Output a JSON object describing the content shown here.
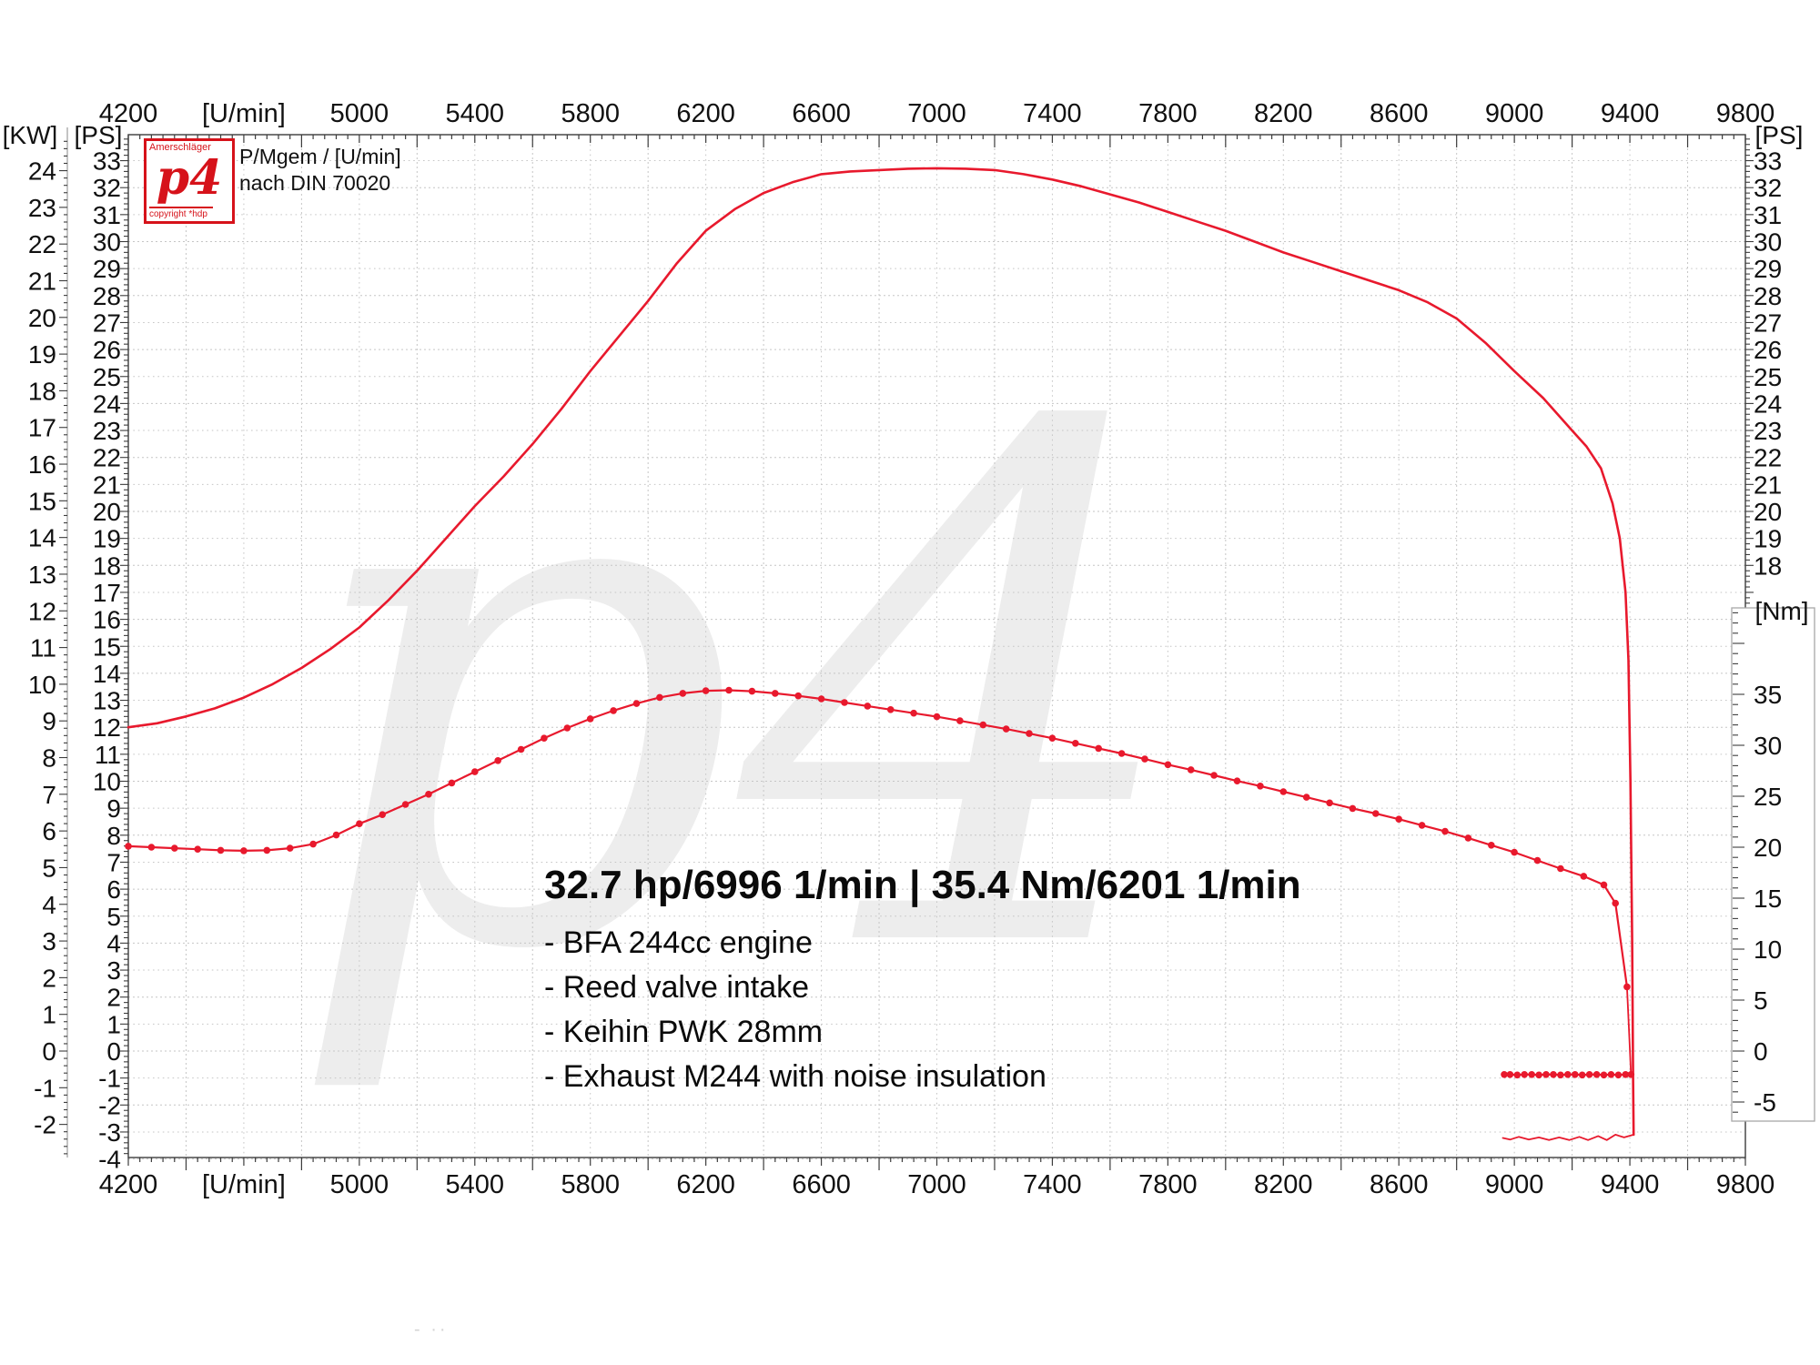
{
  "logo": {
    "brand_top": "Amerschläger",
    "brand_main": "p4",
    "brand_bottom": "copyright *hdp",
    "accent_color": "#d6121a"
  },
  "header_note": {
    "line1": "P/Mgem / [U/min]",
    "line2": "nach DIN 70020"
  },
  "annotation": {
    "title": "32.7 hp/6996 1/min | 35.4 Nm/6201 1/min",
    "bullets": [
      "- BFA 244cc engine",
      "- Reed valve intake",
      "- Keihin PWK 28mm",
      "- Exhaust M244 with noise insulation"
    ]
  },
  "watermark": "p4",
  "artifact": {
    "text": "- ··"
  },
  "chart_data": {
    "type": "line",
    "title": "32.7 hp/6996 1/min | 35.4 Nm/6201 1/min",
    "peak_power": {
      "value": 32.7,
      "unit": "hp",
      "rpm": 6996
    },
    "peak_torque": {
      "value": 35.4,
      "unit": "Nm",
      "rpm": 6201
    },
    "grid": "on",
    "colors": {
      "curve": "#e8192d",
      "grid": "#c6c6c6",
      "axis": "#3c3c3c",
      "watermark": "#ededed"
    },
    "x_axis": {
      "label": "[U/min]",
      "min": 4200,
      "max": 9800,
      "major_step": 400,
      "minor_grid_step": 200,
      "tick_labels": [
        "4200",
        "[U/min]",
        "5000",
        "5400",
        "5800",
        "6200",
        "6600",
        "7000",
        "7400",
        "7800",
        "8200",
        "8600",
        "9000",
        "9400",
        "9800"
      ]
    },
    "kw_axis": {
      "label": "[KW]",
      "ticks": [
        24,
        23,
        22,
        21,
        20,
        19,
        18,
        17,
        16,
        15,
        14,
        13,
        12,
        11,
        10,
        9,
        8,
        7,
        6,
        5,
        4,
        3,
        2,
        1,
        0,
        -1,
        -2
      ]
    },
    "ps_axis_left": {
      "label": "[PS]",
      "ticks": [
        33,
        32,
        31,
        30,
        29,
        28,
        27,
        26,
        25,
        24,
        23,
        22,
        21,
        20,
        19,
        18,
        17,
        16,
        15,
        14,
        13,
        12,
        11,
        10,
        9,
        8,
        7,
        6,
        5,
        4,
        3,
        2,
        1,
        0,
        -1,
        -2,
        -3,
        -4
      ]
    },
    "ps_axis_right": {
      "label": "[PS]",
      "ticks": [
        33,
        32,
        31,
        30,
        29,
        28,
        27,
        26,
        25,
        24,
        23,
        22,
        21,
        20,
        19,
        18
      ]
    },
    "nm_axis": {
      "label": "[Nm]",
      "ticks": [
        35,
        30,
        25,
        20,
        15,
        10,
        5,
        0,
        -5
      ]
    },
    "series": [
      {
        "name": "power_ps",
        "unit": "PS",
        "markers": false,
        "points": [
          [
            4200,
            12.0
          ],
          [
            4300,
            12.15
          ],
          [
            4400,
            12.4
          ],
          [
            4500,
            12.7
          ],
          [
            4600,
            13.1
          ],
          [
            4700,
            13.6
          ],
          [
            4800,
            14.2
          ],
          [
            4900,
            14.9
          ],
          [
            5000,
            15.7
          ],
          [
            5100,
            16.7
          ],
          [
            5200,
            17.8
          ],
          [
            5300,
            19.0
          ],
          [
            5400,
            20.2
          ],
          [
            5500,
            21.3
          ],
          [
            5600,
            22.5
          ],
          [
            5700,
            23.8
          ],
          [
            5800,
            25.2
          ],
          [
            5900,
            26.5
          ],
          [
            6000,
            27.8
          ],
          [
            6100,
            29.2
          ],
          [
            6200,
            30.4
          ],
          [
            6300,
            31.2
          ],
          [
            6400,
            31.8
          ],
          [
            6500,
            32.2
          ],
          [
            6600,
            32.5
          ],
          [
            6700,
            32.6
          ],
          [
            6800,
            32.65
          ],
          [
            6900,
            32.7
          ],
          [
            7000,
            32.72
          ],
          [
            7100,
            32.7
          ],
          [
            7200,
            32.65
          ],
          [
            7300,
            32.5
          ],
          [
            7400,
            32.3
          ],
          [
            7500,
            32.05
          ],
          [
            7600,
            31.75
          ],
          [
            7700,
            31.45
          ],
          [
            7800,
            31.1
          ],
          [
            7900,
            30.75
          ],
          [
            8000,
            30.4
          ],
          [
            8100,
            30.0
          ],
          [
            8200,
            29.6
          ],
          [
            8300,
            29.25
          ],
          [
            8400,
            28.9
          ],
          [
            8500,
            28.55
          ],
          [
            8600,
            28.2
          ],
          [
            8700,
            27.75
          ],
          [
            8800,
            27.15
          ],
          [
            8900,
            26.25
          ],
          [
            9000,
            25.2
          ],
          [
            9100,
            24.2
          ],
          [
            9200,
            23.0
          ],
          [
            9250,
            22.4
          ],
          [
            9300,
            21.6
          ],
          [
            9340,
            20.3
          ],
          [
            9365,
            19.0
          ],
          [
            9385,
            17.0
          ],
          [
            9395,
            14.5
          ],
          [
            9402,
            10.0
          ],
          [
            9408,
            4.0
          ],
          [
            9411,
            -1.0
          ],
          [
            9413,
            -3.1
          ]
        ]
      },
      {
        "name": "power_return",
        "unit": "PS",
        "markers": false,
        "points": [
          [
            9413,
            -3.1
          ],
          [
            9380,
            -3.2
          ],
          [
            9350,
            -3.1
          ],
          [
            9320,
            -3.3
          ],
          [
            9290,
            -3.15
          ],
          [
            9255,
            -3.3
          ],
          [
            9225,
            -3.18
          ],
          [
            9190,
            -3.3
          ],
          [
            9155,
            -3.2
          ],
          [
            9120,
            -3.3
          ],
          [
            9085,
            -3.2
          ],
          [
            9050,
            -3.28
          ],
          [
            9015,
            -3.18
          ],
          [
            8985,
            -3.28
          ],
          [
            8960,
            -3.22
          ]
        ]
      },
      {
        "name": "torque_nm",
        "unit": "Nm",
        "markers": true,
        "points": [
          [
            4200,
            20.1
          ],
          [
            4280,
            20.0
          ],
          [
            4360,
            19.9
          ],
          [
            4440,
            19.8
          ],
          [
            4520,
            19.7
          ],
          [
            4600,
            19.65
          ],
          [
            4680,
            19.7
          ],
          [
            4760,
            19.9
          ],
          [
            4840,
            20.3
          ],
          [
            4920,
            21.2
          ],
          [
            5000,
            22.3
          ],
          [
            5080,
            23.2
          ],
          [
            5160,
            24.2
          ],
          [
            5240,
            25.2
          ],
          [
            5320,
            26.3
          ],
          [
            5400,
            27.4
          ],
          [
            5480,
            28.5
          ],
          [
            5560,
            29.6
          ],
          [
            5640,
            30.7
          ],
          [
            5720,
            31.7
          ],
          [
            5800,
            32.6
          ],
          [
            5880,
            33.4
          ],
          [
            5960,
            34.1
          ],
          [
            6040,
            34.7
          ],
          [
            6120,
            35.1
          ],
          [
            6200,
            35.35
          ],
          [
            6280,
            35.4
          ],
          [
            6360,
            35.3
          ],
          [
            6440,
            35.1
          ],
          [
            6520,
            34.85
          ],
          [
            6600,
            34.55
          ],
          [
            6680,
            34.2
          ],
          [
            6760,
            33.85
          ],
          [
            6840,
            33.5
          ],
          [
            6920,
            33.15
          ],
          [
            7000,
            32.8
          ],
          [
            7080,
            32.4
          ],
          [
            7160,
            32.0
          ],
          [
            7240,
            31.6
          ],
          [
            7320,
            31.15
          ],
          [
            7400,
            30.7
          ],
          [
            7480,
            30.2
          ],
          [
            7560,
            29.7
          ],
          [
            7640,
            29.2
          ],
          [
            7720,
            28.65
          ],
          [
            7800,
            28.1
          ],
          [
            7880,
            27.6
          ],
          [
            7960,
            27.05
          ],
          [
            8040,
            26.5
          ],
          [
            8120,
            26.0
          ],
          [
            8200,
            25.45
          ],
          [
            8280,
            24.9
          ],
          [
            8360,
            24.35
          ],
          [
            8440,
            23.8
          ],
          [
            8520,
            23.3
          ],
          [
            8600,
            22.75
          ],
          [
            8680,
            22.15
          ],
          [
            8760,
            21.55
          ],
          [
            8840,
            20.9
          ],
          [
            8920,
            20.2
          ],
          [
            9000,
            19.5
          ],
          [
            9080,
            18.7
          ],
          [
            9160,
            17.9
          ],
          [
            9240,
            17.15
          ],
          [
            9310,
            16.3
          ],
          [
            9350,
            14.5
          ],
          [
            9390,
            6.3
          ]
        ]
      },
      {
        "name": "torque_drop",
        "unit": "Nm",
        "markers": false,
        "points": [
          [
            9390,
            6.3
          ],
          [
            9398,
            1.5
          ],
          [
            9404,
            -2.3
          ]
        ]
      },
      {
        "name": "torque_return",
        "unit": "Nm",
        "markers": true,
        "points": [
          [
            9404,
            -2.3
          ],
          [
            9385,
            -2.3
          ],
          [
            9360,
            -2.35
          ],
          [
            9335,
            -2.3
          ],
          [
            9310,
            -2.35
          ],
          [
            9285,
            -2.3
          ],
          [
            9260,
            -2.3
          ],
          [
            9235,
            -2.35
          ],
          [
            9210,
            -2.3
          ],
          [
            9185,
            -2.3
          ],
          [
            9160,
            -2.35
          ],
          [
            9135,
            -2.3
          ],
          [
            9110,
            -2.3
          ],
          [
            9085,
            -2.35
          ],
          [
            9060,
            -2.3
          ],
          [
            9035,
            -2.3
          ],
          [
            9010,
            -2.35
          ],
          [
            8985,
            -2.3
          ],
          [
            8965,
            -2.3
          ]
        ]
      }
    ]
  }
}
